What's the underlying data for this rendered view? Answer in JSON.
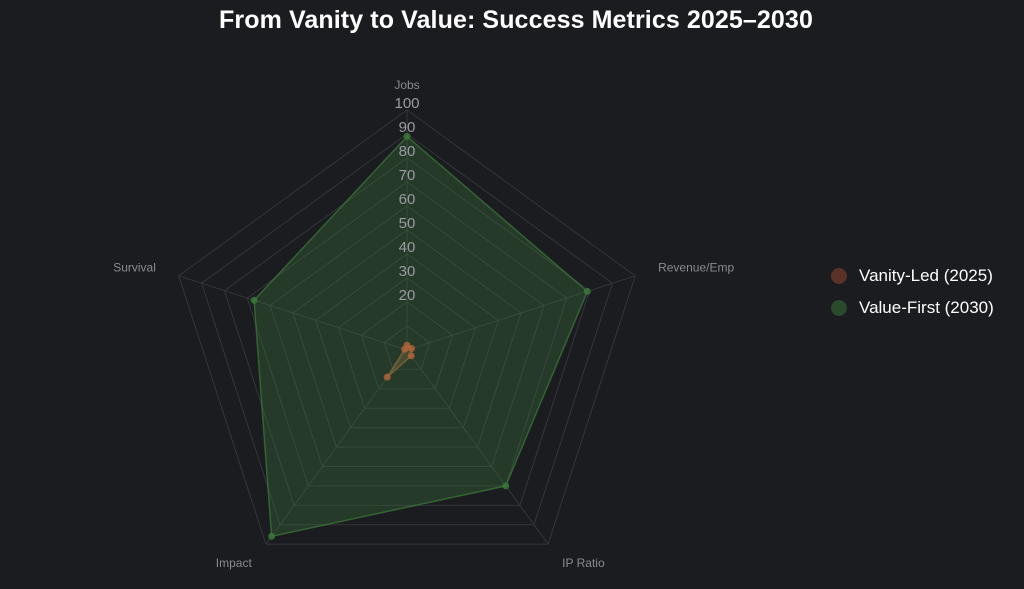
{
  "title": "From Vanity to Value: Success Metrics 2025–2030",
  "chart_data": {
    "type": "radar",
    "axes": [
      "Jobs",
      "Revenue/Emp",
      "IP Ratio",
      "Impact",
      "Survival"
    ],
    "r_range": [
      0,
      100
    ],
    "r_ticks": [
      20,
      30,
      40,
      50,
      60,
      70,
      80,
      90,
      100
    ],
    "grid": true,
    "legend_position": "right",
    "series": [
      {
        "name": "Vanity-Led (2025)",
        "values": [
          2,
          2,
          3,
          14,
          1
        ],
        "color": "#b5653a",
        "legend_color": "#5a3326"
      },
      {
        "name": "Value-First (2030)",
        "values": [
          89,
          79,
          70,
          96,
          67
        ],
        "color": "#3c7a3a",
        "legend_color": "#2a4a2c"
      }
    ]
  }
}
